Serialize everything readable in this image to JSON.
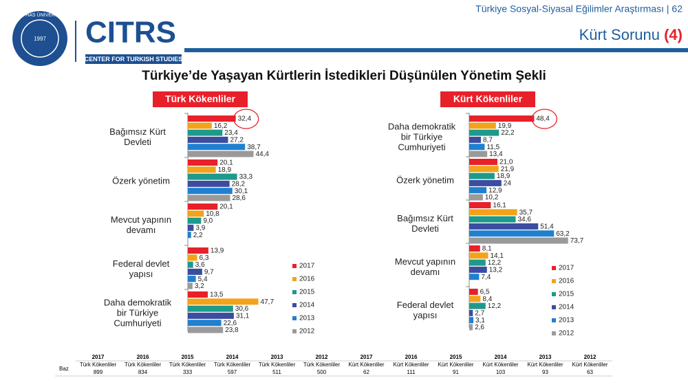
{
  "header": {
    "survey": "Türkiye Sosyal-Siyasal Eğilimler Araştırması | 62",
    "section": "Kürt Sorunu",
    "section_number": "(4)",
    "logo_text": "CITRS",
    "logo_subtitle": "CENTER FOR TURKISH STUDIES",
    "seal_text": "KADİR HAS ÜNİVERSİTESİ",
    "seal_year": "1997"
  },
  "title": "Türkiye’de Yaşayan Kürtlerin İstedikleri Düşünülen Yönetim Şekli",
  "chart_data": [
    {
      "type": "hbar",
      "title": "Türk Kökenliler",
      "categories": [
        "Bağımsız Kürt Devleti",
        "Özerk yönetim",
        "Mevcut yapının devamı",
        "Federal devlet yapısı",
        "Daha demokratik bir Türkiye Cumhuriyeti"
      ],
      "series": [
        {
          "name": "2017",
          "color": "#e8202a",
          "values": [
            32.4,
            20.1,
            20.1,
            13.9,
            13.5
          ],
          "value_labels": [
            "32,4",
            "20,1",
            "20,1",
            "13,9",
            "13,5"
          ]
        },
        {
          "name": "2016",
          "color": "#f2a31b",
          "values": [
            16.2,
            18.9,
            10.8,
            6.3,
            47.7
          ],
          "value_labels": [
            "16,2",
            "18,9",
            "10,8",
            "6,3",
            "47,7"
          ]
        },
        {
          "name": "2015",
          "color": "#1d9a8a",
          "values": [
            23.4,
            33.3,
            9.0,
            3.6,
            30.6
          ],
          "value_labels": [
            "23,4",
            "33,3",
            "9,0",
            "3,6",
            "30,6"
          ]
        },
        {
          "name": "2014",
          "color": "#3b4da0",
          "values": [
            27.2,
            28.2,
            3.9,
            9.7,
            31.1
          ],
          "value_labels": [
            "27,2",
            "28,2",
            "3,9",
            "9,7",
            "31,1"
          ]
        },
        {
          "name": "2013",
          "color": "#1f80d0",
          "values": [
            38.7,
            30.1,
            2.2,
            5.4,
            22.6
          ],
          "value_labels": [
            "38,7",
            "30,1",
            "2,2",
            "5,4",
            "22,6"
          ]
        },
        {
          "name": "2012",
          "color": "#9a9a9a",
          "values": [
            44.4,
            28.6,
            null,
            3.2,
            23.8
          ],
          "value_labels": [
            "44,4",
            "28,6",
            null,
            "3,2",
            "23,8"
          ]
        }
      ]
    },
    {
      "type": "hbar",
      "title": "Kürt Kökenliler",
      "categories": [
        "Daha demokratik bir Türkiye Cumhuriyeti",
        "Özerk yönetim",
        "Bağımsız Kürt Devleti",
        "Mevcut yapının devamı",
        "Federal devlet yapısı"
      ],
      "series": [
        {
          "name": "2017",
          "color": "#e8202a",
          "values": [
            48.4,
            21.0,
            16.1,
            8.1,
            6.5
          ],
          "value_labels": [
            "48,4",
            "21,0",
            "16,1",
            "8,1",
            "6,5"
          ]
        },
        {
          "name": "2016",
          "color": "#f2a31b",
          "values": [
            19.9,
            21.9,
            35.7,
            14.1,
            8.4
          ],
          "value_labels": [
            "19,9",
            "21,9",
            "35,7",
            "14,1",
            "8,4"
          ]
        },
        {
          "name": "2015",
          "color": "#1d9a8a",
          "values": [
            22.2,
            18.9,
            34.6,
            12.2,
            12.2
          ],
          "value_labels": [
            "22,2",
            "18,9",
            "34,6",
            "12,2",
            "12,2"
          ]
        },
        {
          "name": "2014",
          "color": "#3b4da0",
          "values": [
            8.7,
            24,
            51.4,
            13.2,
            2.7
          ],
          "value_labels": [
            "8,7",
            "24",
            "51,4",
            "13,2",
            "2,7"
          ]
        },
        {
          "name": "2013",
          "color": "#1f80d0",
          "values": [
            11.5,
            12.9,
            63.2,
            7.4,
            3.1
          ],
          "value_labels": [
            "11,5",
            "12,9",
            "63,2",
            "7,4",
            "3,1"
          ]
        },
        {
          "name": "2012",
          "color": "#9a9a9a",
          "values": [
            13.4,
            10.2,
            73.7,
            null,
            2.6
          ],
          "value_labels": [
            "13,4",
            "10,2",
            "73,7",
            null,
            "2,6"
          ]
        }
      ]
    }
  ],
  "table": {
    "row_label": "Baz",
    "columns": [
      {
        "year": "2017",
        "group": "Türk Kökenliler",
        "n": 899
      },
      {
        "year": "2016",
        "group": "Türk Kökenliler",
        "n": 834
      },
      {
        "year": "2015",
        "group": "Türk Kökenliler",
        "n": 333
      },
      {
        "year": "2014",
        "group": "Türk Kökenliler",
        "n": 597
      },
      {
        "year": "2013",
        "group": "Türk Kökenliler",
        "n": 511
      },
      {
        "year": "2012",
        "group": "Türk Kökenliler",
        "n": 500
      },
      {
        "year": "2017",
        "group": "Kürt Kökenliler",
        "n": 62
      },
      {
        "year": "2016",
        "group": "Kürt Kökenliler",
        "n": 111
      },
      {
        "year": "2015",
        "group": "Kürt Kökenliler",
        "n": 91
      },
      {
        "year": "2014",
        "group": "Kürt Kökenliler",
        "n": 103
      },
      {
        "year": "2013",
        "group": "Kürt Kökenliler",
        "n": 93
      },
      {
        "year": "2012",
        "group": "Kürt Kökenliler",
        "n": 63
      }
    ]
  }
}
